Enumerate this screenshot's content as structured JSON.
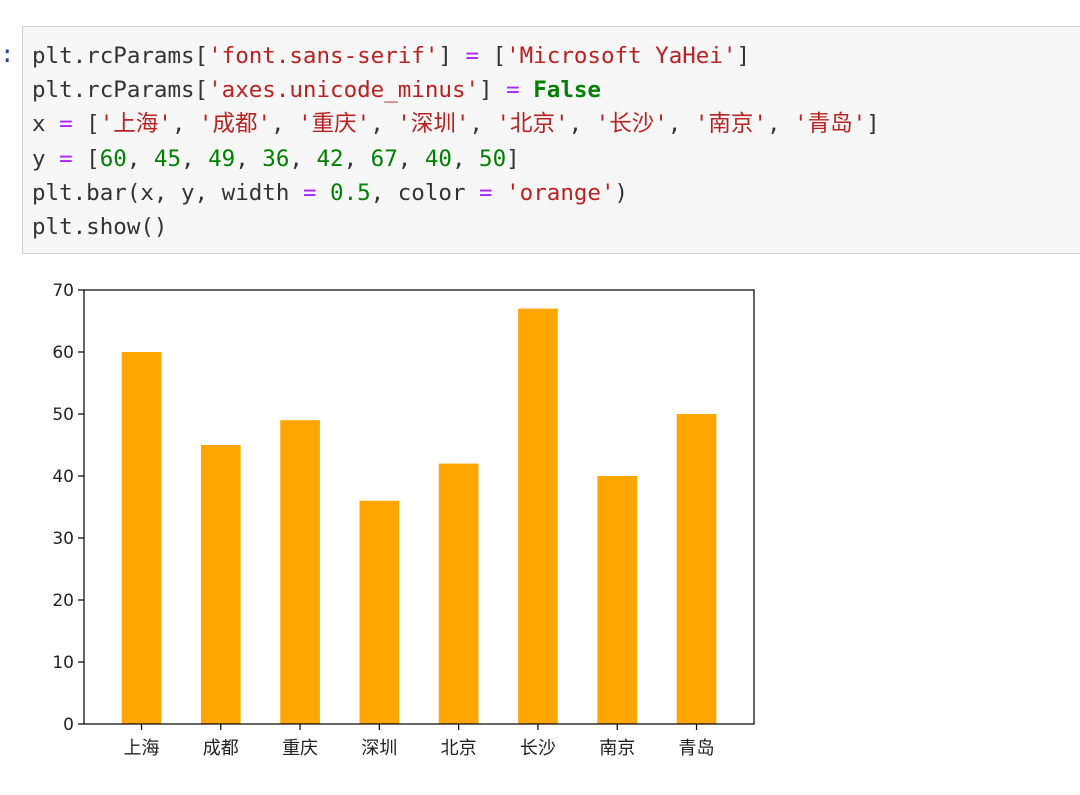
{
  "cell": {
    "prompt": ":",
    "code_lines": [
      [
        {
          "t": "plt.rcParams[",
          "c": "txt"
        },
        {
          "t": "'font.sans-serif'",
          "c": "str"
        },
        {
          "t": "] ",
          "c": "txt"
        },
        {
          "t": "=",
          "c": "op"
        },
        {
          "t": " [",
          "c": "txt"
        },
        {
          "t": "'Microsoft YaHei'",
          "c": "str"
        },
        {
          "t": "]",
          "c": "txt"
        }
      ],
      [
        {
          "t": "plt.rcParams[",
          "c": "txt"
        },
        {
          "t": "'axes.unicode_minus'",
          "c": "str"
        },
        {
          "t": "] ",
          "c": "txt"
        },
        {
          "t": "=",
          "c": "op"
        },
        {
          "t": " ",
          "c": "txt"
        },
        {
          "t": "False",
          "c": "kw"
        }
      ],
      [
        {
          "t": "x ",
          "c": "txt"
        },
        {
          "t": "=",
          "c": "op"
        },
        {
          "t": " [",
          "c": "txt"
        },
        {
          "t": "'上海'",
          "c": "str"
        },
        {
          "t": ", ",
          "c": "txt"
        },
        {
          "t": "'成都'",
          "c": "str"
        },
        {
          "t": ", ",
          "c": "txt"
        },
        {
          "t": "'重庆'",
          "c": "str"
        },
        {
          "t": ", ",
          "c": "txt"
        },
        {
          "t": "'深圳'",
          "c": "str"
        },
        {
          "t": ", ",
          "c": "txt"
        },
        {
          "t": "'北京'",
          "c": "str"
        },
        {
          "t": ", ",
          "c": "txt"
        },
        {
          "t": "'长沙'",
          "c": "str"
        },
        {
          "t": ", ",
          "c": "txt"
        },
        {
          "t": "'南京'",
          "c": "str"
        },
        {
          "t": ", ",
          "c": "txt"
        },
        {
          "t": "'青岛'",
          "c": "str"
        },
        {
          "t": "]",
          "c": "txt"
        }
      ],
      [
        {
          "t": "y ",
          "c": "txt"
        },
        {
          "t": "=",
          "c": "op"
        },
        {
          "t": " [",
          "c": "txt"
        },
        {
          "t": "60",
          "c": "num"
        },
        {
          "t": ", ",
          "c": "txt"
        },
        {
          "t": "45",
          "c": "num"
        },
        {
          "t": ", ",
          "c": "txt"
        },
        {
          "t": "49",
          "c": "num"
        },
        {
          "t": ", ",
          "c": "txt"
        },
        {
          "t": "36",
          "c": "num"
        },
        {
          "t": ", ",
          "c": "txt"
        },
        {
          "t": "42",
          "c": "num"
        },
        {
          "t": ", ",
          "c": "txt"
        },
        {
          "t": "67",
          "c": "num"
        },
        {
          "t": ", ",
          "c": "txt"
        },
        {
          "t": "40",
          "c": "num"
        },
        {
          "t": ", ",
          "c": "txt"
        },
        {
          "t": "50",
          "c": "num"
        },
        {
          "t": "]",
          "c": "txt"
        }
      ],
      [
        {
          "t": "plt.bar(x, y, width ",
          "c": "txt"
        },
        {
          "t": "=",
          "c": "op"
        },
        {
          "t": " ",
          "c": "txt"
        },
        {
          "t": "0.5",
          "c": "num"
        },
        {
          "t": ", color ",
          "c": "txt"
        },
        {
          "t": "=",
          "c": "op"
        },
        {
          "t": " ",
          "c": "txt"
        },
        {
          "t": "'orange'",
          "c": "str"
        },
        {
          "t": ")",
          "c": "txt"
        }
      ],
      [
        {
          "t": "plt.show()",
          "c": "txt"
        }
      ]
    ]
  },
  "chart_data": {
    "type": "bar",
    "categories": [
      "上海",
      "成都",
      "重庆",
      "深圳",
      "北京",
      "长沙",
      "南京",
      "青岛"
    ],
    "values": [
      60,
      45,
      49,
      36,
      42,
      67,
      40,
      50
    ],
    "yticks": [
      "0",
      "10",
      "20",
      "30",
      "40",
      "50",
      "60",
      "70"
    ],
    "ylim": [
      0,
      70
    ],
    "bar_width": 0.5,
    "bar_color": "#ffa500",
    "grid": false,
    "legend": "none",
    "title": "",
    "xlabel": "",
    "ylabel": ""
  }
}
